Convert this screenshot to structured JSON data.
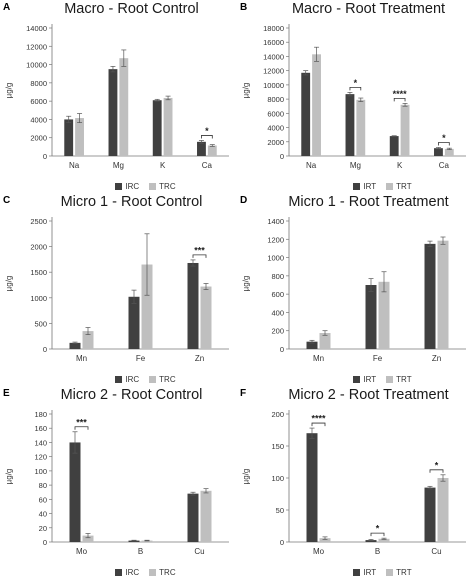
{
  "colors": {
    "control": "#404040",
    "treatment": "#bfbfbf"
  },
  "chart_data": [
    {
      "panel": "A",
      "title": "Macro - Root Control",
      "type": "bar",
      "ylabel": "µg/g",
      "ylim": [
        0,
        14000
      ],
      "yticks": [
        0,
        2000,
        4000,
        6000,
        8000,
        10000,
        12000,
        14000
      ],
      "categories": [
        "Na",
        "Mg",
        "K",
        "Ca"
      ],
      "series": [
        {
          "name": "IRC",
          "values": [
            4000,
            9500,
            6100,
            1550
          ],
          "errors": [
            350,
            300,
            100,
            150
          ]
        },
        {
          "name": "TRC",
          "values": [
            4150,
            10700,
            6350,
            1150
          ],
          "errors": [
            500,
            900,
            200,
            100
          ]
        }
      ],
      "significance": [
        {
          "category_index": 3,
          "label": "*"
        }
      ],
      "legend": "bottom"
    },
    {
      "panel": "B",
      "title": "Macro - Root Treatment",
      "type": "bar",
      "ylabel": "µg/g",
      "ylim": [
        0,
        18000
      ],
      "yticks": [
        0,
        2000,
        4000,
        6000,
        8000,
        10000,
        12000,
        14000,
        16000,
        18000
      ],
      "categories": [
        "Na",
        "Mg",
        "K",
        "Ca"
      ],
      "series": [
        {
          "name": "IRT",
          "values": [
            11700,
            8700,
            2800,
            1100
          ],
          "errors": [
            300,
            250,
            50,
            100
          ]
        },
        {
          "name": "TRT",
          "values": [
            14300,
            7900,
            7200,
            1000
          ],
          "errors": [
            1000,
            250,
            200,
            100
          ]
        }
      ],
      "significance": [
        {
          "category_index": 1,
          "label": "*"
        },
        {
          "category_index": 2,
          "label": "****"
        },
        {
          "category_index": 3,
          "label": "*"
        }
      ],
      "legend": "bottom"
    },
    {
      "panel": "C",
      "title": "Micro 1 - Root Control",
      "type": "bar",
      "ylabel": "µg/g",
      "ylim": [
        0,
        2500
      ],
      "yticks": [
        0,
        500,
        1000,
        1500,
        2000,
        2500
      ],
      "categories": [
        "Mn",
        "Fe",
        "Zn"
      ],
      "series": [
        {
          "name": "IRC",
          "values": [
            120,
            1020,
            1680
          ],
          "errors": [
            15,
            130,
            60
          ]
        },
        {
          "name": "TRC",
          "values": [
            350,
            1650,
            1220
          ],
          "errors": [
            70,
            600,
            60
          ]
        }
      ],
      "significance": [
        {
          "category_index": 2,
          "label": "***"
        }
      ],
      "legend": "bottom"
    },
    {
      "panel": "D",
      "title": "Micro 1 - Root Treatment",
      "type": "bar",
      "ylabel": "µg/g",
      "ylim": [
        0,
        1400
      ],
      "yticks": [
        0,
        200,
        400,
        600,
        800,
        1000,
        1200,
        1400
      ],
      "categories": [
        "Mn",
        "Fe",
        "Zn"
      ],
      "series": [
        {
          "name": "IRT",
          "values": [
            80,
            700,
            1150
          ],
          "errors": [
            15,
            70,
            30
          ]
        },
        {
          "name": "TRT",
          "values": [
            175,
            735,
            1185
          ],
          "errors": [
            25,
            110,
            40
          ]
        }
      ],
      "significance": [],
      "legend": "bottom"
    },
    {
      "panel": "E",
      "title": "Micro 2 - Root Control",
      "type": "bar",
      "ylabel": "µg/g",
      "ylim": [
        0,
        180
      ],
      "yticks": [
        0,
        20,
        40,
        60,
        80,
        100,
        120,
        140,
        160,
        180
      ],
      "categories": [
        "Mo",
        "B",
        "Cu"
      ],
      "series": [
        {
          "name": "IRC",
          "values": [
            140,
            2,
            68
          ],
          "errors": [
            15,
            0.5,
            2
          ]
        },
        {
          "name": "TRC",
          "values": [
            9,
            2,
            72
          ],
          "errors": [
            3,
            0.5,
            3
          ]
        }
      ],
      "significance": [
        {
          "category_index": 0,
          "label": "***"
        }
      ],
      "legend": "bottom"
    },
    {
      "panel": "F",
      "title": "Micro 2 - Root Treatment",
      "type": "bar",
      "ylabel": "µg/g",
      "ylim": [
        0,
        200
      ],
      "yticks": [
        0,
        50,
        100,
        150,
        200
      ],
      "categories": [
        "Mo",
        "B",
        "Cu"
      ],
      "series": [
        {
          "name": "IRT",
          "values": [
            170,
            3,
            85
          ],
          "errors": [
            8,
            1,
            2
          ]
        },
        {
          "name": "TRT",
          "values": [
            6,
            5,
            100
          ],
          "errors": [
            2,
            1,
            5
          ]
        }
      ],
      "significance": [
        {
          "category_index": 0,
          "label": "****"
        },
        {
          "category_index": 1,
          "label": "*"
        },
        {
          "category_index": 2,
          "label": "*"
        }
      ],
      "legend": "bottom"
    }
  ]
}
